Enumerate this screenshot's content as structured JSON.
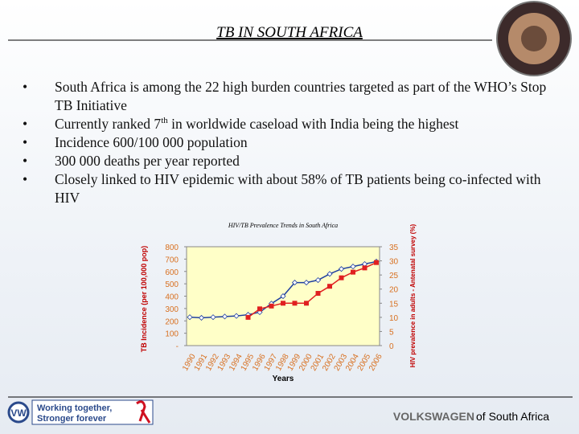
{
  "title": "TB IN SOUTH AFRICA",
  "bullets": [
    "South Africa is among the 22 high burden countries targeted as part of the WHO’s Stop TB Initiative",
    {
      "text": "Currently ranked 7",
      "sup": "th",
      "rest": " in worldwide caseload with India being the highest"
    },
    "Incidence 600/100 000 population",
    "300 000 deaths per year reported",
    "Closely linked to HIV epidemic with about 58% of TB patients being co-infected with HIV"
  ],
  "chart_data": {
    "type": "line",
    "title": "HIV/TB Prevalence Trends in South Africa",
    "x_label": "Years",
    "y_label": "TB Incidence (per 100,000 pop)",
    "y2_label": "HIV  prevalence in adults - Antenatal survey (%)",
    "categories": [
      "1990",
      "1991",
      "1992",
      "1993",
      "1994",
      "1995",
      "1996",
      "1997",
      "1998",
      "1999",
      "2000",
      "2001",
      "2002",
      "2003",
      "2004",
      "2005",
      "2006"
    ],
    "series": [
      {
        "name": "TB Incidence",
        "color": "#1f3fa0",
        "values": [
          230,
          225,
          230,
          235,
          240,
          250,
          270,
          340,
          400,
          510,
          510,
          530,
          580,
          620,
          640,
          660,
          680
        ]
      },
      {
        "name": "HIV prevalence",
        "color": "#e02020",
        "axis": "y2",
        "values": [
          null,
          null,
          null,
          null,
          null,
          10,
          13,
          14,
          15,
          15,
          15,
          18.5,
          21,
          24,
          26,
          27.5,
          29.4
        ]
      }
    ],
    "ylim": [
      0,
      800
    ],
    "yticks": [
      {
        "value": 0,
        "label": "-"
      },
      100,
      200,
      300,
      400,
      500,
      600,
      700,
      800
    ],
    "y2lim": [
      0,
      35
    ],
    "y2ticks": [
      0,
      5,
      10,
      15,
      20,
      25,
      30,
      35
    ]
  },
  "footer": {
    "slogan_1": "Working together,",
    "slogan_2": "Stronger forever",
    "brand": "VOLKSWAGEN",
    "brand_rest": "of South Africa"
  }
}
